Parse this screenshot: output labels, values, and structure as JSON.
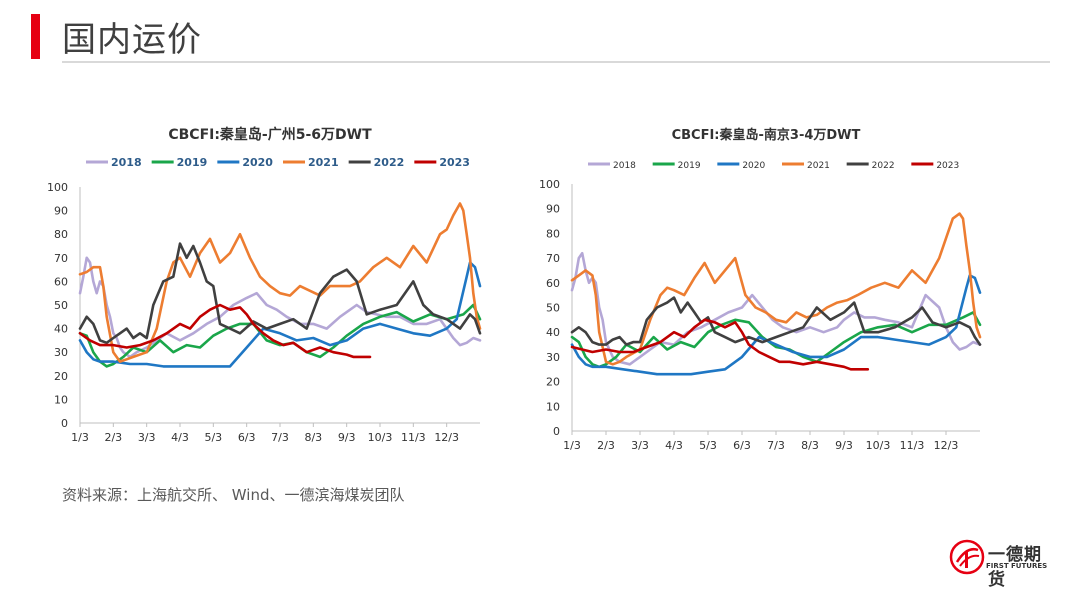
{
  "page": {
    "title": "国内运价",
    "source": "资料来源：上海航交所、 Wind、一德滨海煤炭团队",
    "logo_name": "一德期货",
    "logo_en": "FIRST FUTURES"
  },
  "colors": {
    "accent": "#e60012",
    "2018": "#b4a7d6",
    "2019": "#1aa64a",
    "2020": "#1f77c4",
    "2021": "#ed7d31",
    "2022": "#404040",
    "2023": "#c00000"
  },
  "chart_data": [
    {
      "type": "line",
      "title": "CBCFI:秦皇岛-广州5-6万DWT",
      "xlabel": "",
      "ylabel": "",
      "ylim": [
        0,
        100
      ],
      "yticks": [
        0,
        10,
        20,
        30,
        40,
        50,
        60,
        70,
        80,
        90,
        100
      ],
      "x_domain": [
        0,
        12
      ],
      "xticks": [
        "1/3",
        "2/3",
        "3/3",
        "4/3",
        "5/3",
        "6/3",
        "7/3",
        "8/3",
        "9/3",
        "10/3",
        "11/3",
        "12/3"
      ],
      "grid": false,
      "legend": "top",
      "series": [
        {
          "name": "2018",
          "key": "2018",
          "x": [
            0,
            0.1,
            0.2,
            0.3,
            0.4,
            0.5,
            0.6,
            0.7,
            0.8,
            0.9,
            1.0,
            1.1,
            1.2,
            1.3,
            1.5,
            1.7,
            2.0,
            2.3,
            2.6,
            3.0,
            3.4,
            3.8,
            4.2,
            4.6,
            5.0,
            5.3,
            5.6,
            5.9,
            6.2,
            6.6,
            7.0,
            7.4,
            7.8,
            8.0,
            8.3,
            8.6,
            8.9,
            9.2,
            9.6,
            10.0,
            10.4,
            10.8,
            11.0,
            11.2,
            11.4,
            11.6,
            11.8,
            12.0
          ],
          "values": [
            55,
            62,
            70,
            68,
            60,
            55,
            60,
            58,
            50,
            45,
            38,
            36,
            32,
            30,
            28,
            30,
            32,
            35,
            38,
            35,
            38,
            42,
            45,
            50,
            53,
            55,
            50,
            48,
            45,
            42,
            42,
            40,
            45,
            47,
            50,
            47,
            46,
            45,
            45,
            42,
            42,
            44,
            40,
            36,
            33,
            34,
            36,
            35
          ]
        },
        {
          "name": "2019",
          "key": "2019",
          "x": [
            0,
            0.2,
            0.4,
            0.6,
            0.8,
            1.0,
            1.3,
            1.6,
            2.0,
            2.4,
            2.8,
            3.2,
            3.6,
            4.0,
            4.4,
            4.8,
            5.2,
            5.6,
            6.0,
            6.4,
            6.8,
            7.2,
            7.6,
            8.0,
            8.5,
            9.0,
            9.5,
            10.0,
            10.5,
            11.0,
            11.5,
            11.8,
            12.0
          ],
          "values": [
            38,
            37,
            30,
            26,
            24,
            25,
            28,
            32,
            30,
            35,
            30,
            33,
            32,
            37,
            40,
            42,
            42,
            35,
            33,
            34,
            30,
            28,
            32,
            37,
            42,
            45,
            47,
            43,
            46,
            44,
            46,
            50,
            44
          ]
        },
        {
          "name": "2020",
          "key": "2020",
          "x": [
            0,
            0.2,
            0.4,
            0.6,
            0.8,
            1.0,
            1.5,
            2.0,
            2.5,
            3.0,
            3.5,
            4.0,
            4.5,
            5.0,
            5.5,
            6.0,
            6.5,
            7.0,
            7.5,
            8.0,
            8.5,
            9.0,
            9.5,
            10.0,
            10.5,
            11.0,
            11.3,
            11.6,
            11.7,
            11.85,
            12.0
          ],
          "values": [
            35,
            30,
            27,
            26,
            26,
            26,
            25,
            25,
            24,
            24,
            24,
            24,
            24,
            32,
            40,
            38,
            35,
            36,
            33,
            35,
            40,
            42,
            40,
            38,
            37,
            40,
            44,
            62,
            68,
            66,
            58
          ]
        },
        {
          "name": "2021",
          "key": "2021",
          "x": [
            0,
            0.2,
            0.4,
            0.6,
            0.7,
            0.8,
            1.0,
            1.2,
            1.4,
            1.6,
            2.0,
            2.3,
            2.6,
            2.8,
            3.0,
            3.3,
            3.6,
            3.9,
            4.2,
            4.5,
            4.8,
            5.1,
            5.4,
            5.7,
            6.0,
            6.3,
            6.6,
            6.9,
            7.2,
            7.5,
            7.8,
            8.1,
            8.4,
            8.8,
            9.2,
            9.6,
            10.0,
            10.4,
            10.8,
            11.0,
            11.2,
            11.4,
            11.5,
            11.6,
            11.7,
            11.8,
            11.9,
            12.0
          ],
          "values": [
            63,
            64,
            66,
            66,
            58,
            45,
            30,
            26,
            27,
            28,
            30,
            40,
            60,
            68,
            70,
            62,
            72,
            78,
            68,
            72,
            80,
            70,
            62,
            58,
            55,
            54,
            58,
            56,
            54,
            58,
            58,
            58,
            60,
            66,
            70,
            66,
            75,
            68,
            80,
            82,
            88,
            93,
            90,
            80,
            70,
            55,
            45,
            40
          ]
        },
        {
          "name": "2022",
          "key": "2022",
          "x": [
            0,
            0.2,
            0.4,
            0.6,
            0.8,
            1.0,
            1.2,
            1.4,
            1.6,
            1.8,
            2.0,
            2.2,
            2.5,
            2.8,
            3.0,
            3.2,
            3.4,
            3.6,
            3.8,
            4.0,
            4.2,
            4.5,
            4.8,
            5.2,
            5.6,
            6.0,
            6.4,
            6.8,
            7.2,
            7.6,
            8.0,
            8.3,
            8.6,
            9.0,
            9.5,
            10.0,
            10.3,
            10.6,
            11.0,
            11.4,
            11.7,
            11.85,
            12.0
          ],
          "values": [
            40,
            45,
            42,
            35,
            34,
            36,
            38,
            40,
            36,
            38,
            36,
            50,
            60,
            62,
            76,
            70,
            75,
            68,
            60,
            58,
            42,
            40,
            38,
            43,
            40,
            42,
            44,
            40,
            55,
            62,
            65,
            60,
            46,
            48,
            50,
            60,
            50,
            46,
            44,
            40,
            46,
            44,
            38
          ]
        },
        {
          "name": "2023",
          "key": "2023",
          "x": [
            0,
            0.3,
            0.6,
            1.0,
            1.4,
            1.8,
            2.2,
            2.6,
            3.0,
            3.3,
            3.6,
            3.9,
            4.2,
            4.5,
            4.8,
            5.0,
            5.2,
            5.5,
            5.8,
            6.1,
            6.4,
            6.8,
            7.2,
            7.6,
            8.0,
            8.2,
            8.4,
            8.7
          ],
          "values": [
            38,
            35,
            33,
            33,
            32,
            33,
            35,
            38,
            42,
            40,
            45,
            48,
            50,
            48,
            49,
            46,
            42,
            38,
            35,
            33,
            34,
            30,
            32,
            30,
            29,
            28,
            28,
            28
          ]
        }
      ]
    },
    {
      "type": "line",
      "title": "CBCFI:秦皇岛-南京3-4万DWT",
      "xlabel": "",
      "ylabel": "",
      "ylim": [
        0,
        100
      ],
      "yticks": [
        0,
        10,
        20,
        30,
        40,
        50,
        60,
        70,
        80,
        90,
        100
      ],
      "x_domain": [
        0,
        12
      ],
      "xticks": [
        "1/3",
        "2/3",
        "3/3",
        "4/3",
        "5/3",
        "6/3",
        "7/3",
        "8/3",
        "9/3",
        "10/3",
        "11/3",
        "12/3"
      ],
      "grid": false,
      "legend": "top",
      "series": [
        {
          "name": "2018",
          "key": "2018",
          "x": [
            0,
            0.1,
            0.2,
            0.3,
            0.4,
            0.5,
            0.6,
            0.7,
            0.8,
            0.9,
            1.0,
            1.2,
            1.4,
            1.7,
            2.0,
            2.3,
            2.6,
            3.0,
            3.4,
            3.8,
            4.2,
            4.6,
            5.0,
            5.3,
            5.6,
            5.9,
            6.2,
            6.6,
            7.0,
            7.4,
            7.8,
            8.0,
            8.3,
            8.6,
            8.9,
            9.2,
            9.6,
            10.0,
            10.4,
            10.8,
            11.0,
            11.2,
            11.4,
            11.6,
            11.8,
            12.0
          ],
          "values": [
            57,
            62,
            70,
            72,
            65,
            60,
            62,
            60,
            50,
            45,
            36,
            30,
            28,
            27,
            30,
            33,
            36,
            35,
            40,
            42,
            45,
            48,
            50,
            55,
            50,
            45,
            42,
            40,
            42,
            40,
            42,
            45,
            48,
            46,
            46,
            45,
            44,
            42,
            55,
            50,
            42,
            36,
            33,
            34,
            36,
            35
          ]
        },
        {
          "name": "2019",
          "key": "2019",
          "x": [
            0,
            0.2,
            0.4,
            0.6,
            0.8,
            1.0,
            1.3,
            1.6,
            2.0,
            2.4,
            2.8,
            3.2,
            3.6,
            4.0,
            4.4,
            4.8,
            5.2,
            5.6,
            6.0,
            6.4,
            6.8,
            7.2,
            7.6,
            8.0,
            8.5,
            9.0,
            9.5,
            10.0,
            10.5,
            11.0,
            11.5,
            11.8,
            12.0
          ],
          "values": [
            38,
            36,
            30,
            27,
            26,
            27,
            30,
            35,
            32,
            38,
            33,
            36,
            34,
            40,
            43,
            45,
            44,
            38,
            34,
            33,
            30,
            28,
            32,
            36,
            40,
            42,
            43,
            40,
            43,
            43,
            46,
            48,
            43
          ]
        },
        {
          "name": "2020",
          "key": "2020",
          "x": [
            0,
            0.2,
            0.4,
            0.6,
            0.8,
            1.0,
            1.5,
            2.0,
            2.5,
            3.0,
            3.5,
            4.0,
            4.5,
            5.0,
            5.5,
            6.0,
            6.5,
            7.0,
            7.5,
            8.0,
            8.5,
            9.0,
            9.5,
            10.0,
            10.5,
            11.0,
            11.3,
            11.6,
            11.7,
            11.85,
            12.0
          ],
          "values": [
            35,
            30,
            27,
            26,
            26,
            26,
            25,
            24,
            23,
            23,
            23,
            24,
            25,
            30,
            38,
            35,
            32,
            30,
            30,
            33,
            38,
            38,
            37,
            36,
            35,
            38,
            42,
            58,
            63,
            62,
            56
          ]
        },
        {
          "name": "2021",
          "key": "2021",
          "x": [
            0,
            0.2,
            0.4,
            0.6,
            0.7,
            0.8,
            1.0,
            1.2,
            1.4,
            1.6,
            2.0,
            2.3,
            2.6,
            2.8,
            3.0,
            3.3,
            3.6,
            3.9,
            4.2,
            4.5,
            4.8,
            5.1,
            5.4,
            5.7,
            6.0,
            6.3,
            6.6,
            6.9,
            7.2,
            7.5,
            7.8,
            8.1,
            8.4,
            8.8,
            9.2,
            9.6,
            10.0,
            10.4,
            10.8,
            11.0,
            11.2,
            11.4,
            11.5,
            11.6,
            11.7,
            11.8,
            11.9,
            12.0
          ],
          "values": [
            61,
            63,
            65,
            63,
            55,
            40,
            28,
            27,
            28,
            30,
            33,
            45,
            55,
            58,
            57,
            55,
            62,
            68,
            60,
            65,
            70,
            55,
            50,
            48,
            45,
            44,
            48,
            46,
            47,
            50,
            52,
            53,
            55,
            58,
            60,
            58,
            65,
            60,
            70,
            78,
            86,
            88,
            86,
            75,
            65,
            52,
            42,
            38
          ]
        },
        {
          "name": "2022",
          "key": "2022",
          "x": [
            0,
            0.2,
            0.4,
            0.6,
            0.8,
            1.0,
            1.2,
            1.4,
            1.6,
            1.8,
            2.0,
            2.2,
            2.5,
            2.8,
            3.0,
            3.2,
            3.4,
            3.6,
            3.8,
            4.0,
            4.2,
            4.5,
            4.8,
            5.2,
            5.6,
            6.0,
            6.4,
            6.8,
            7.2,
            7.6,
            8.0,
            8.3,
            8.6,
            9.0,
            9.5,
            10.0,
            10.3,
            10.6,
            11.0,
            11.4,
            11.7,
            11.85,
            12.0
          ],
          "values": [
            40,
            42,
            40,
            36,
            35,
            35,
            37,
            38,
            35,
            36,
            36,
            45,
            50,
            52,
            54,
            48,
            52,
            48,
            44,
            46,
            40,
            38,
            36,
            38,
            36,
            38,
            40,
            42,
            50,
            45,
            48,
            52,
            40,
            40,
            42,
            46,
            50,
            44,
            42,
            44,
            42,
            38,
            35
          ]
        },
        {
          "name": "2023",
          "key": "2023",
          "x": [
            0,
            0.3,
            0.6,
            1.0,
            1.4,
            1.8,
            2.2,
            2.6,
            3.0,
            3.3,
            3.6,
            3.9,
            4.2,
            4.5,
            4.8,
            5.0,
            5.2,
            5.5,
            5.8,
            6.1,
            6.4,
            6.8,
            7.2,
            7.6,
            8.0,
            8.2,
            8.4,
            8.7
          ],
          "values": [
            34,
            33,
            32,
            33,
            32,
            32,
            34,
            36,
            40,
            38,
            42,
            45,
            44,
            42,
            44,
            40,
            35,
            32,
            30,
            28,
            28,
            27,
            28,
            27,
            26,
            25,
            25,
            25
          ]
        }
      ]
    }
  ]
}
